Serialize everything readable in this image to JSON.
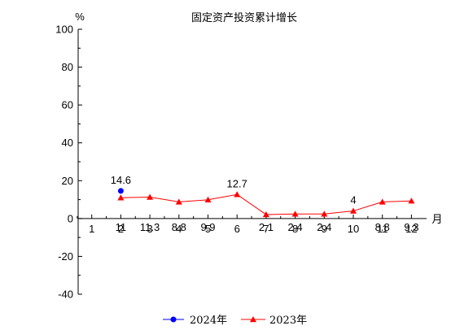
{
  "chart_data": {
    "type": "line",
    "title": "固定资产投资累计增长",
    "ylabel": "%",
    "xlabel": "月",
    "categories": [
      "1",
      "2",
      "3",
      "4",
      "5",
      "6",
      "7",
      "8",
      "9",
      "10",
      "11",
      "12"
    ],
    "yticks": [
      100,
      80,
      60,
      40,
      20,
      0,
      -20,
      -40
    ],
    "ylim": [
      -40,
      100
    ],
    "legend_position": "bottom",
    "grid": false,
    "series": [
      {
        "name": "2024年",
        "color": "#0000ff",
        "marker": "circle",
        "x": [
          "2"
        ],
        "values": [
          14.6
        ],
        "labels": [
          "14.6"
        ]
      },
      {
        "name": "2023年",
        "color": "#ff0000",
        "marker": "triangle",
        "x": [
          "2",
          "3",
          "4",
          "5",
          "6",
          "7",
          "8",
          "9",
          "10",
          "11",
          "12"
        ],
        "values": [
          11,
          11.3,
          8.8,
          9.9,
          12.7,
          2.1,
          2.4,
          2.4,
          4,
          8.8,
          9.3
        ],
        "labels": [
          "11",
          "11.3",
          "8.8",
          "9.9",
          "12.7",
          "2.1",
          "2.4",
          "2.4",
          "4",
          "8.8",
          "9.3"
        ]
      }
    ]
  }
}
